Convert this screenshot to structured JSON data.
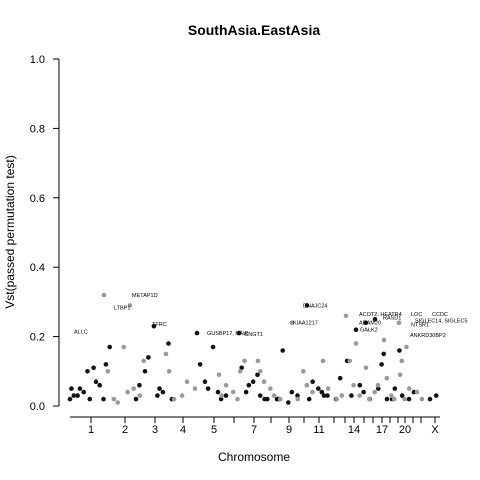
{
  "chart_data": {
    "type": "scatter",
    "title": "SouthAsia.EastAsia",
    "xlabel": "Chromosome",
    "ylabel": "Vst(passed permutation test)",
    "ylim": [
      0,
      1.0
    ],
    "yticks": [
      "0.0",
      "0.2",
      "0.4",
      "0.6",
      "0.8",
      "1.0"
    ],
    "grid": false,
    "chromosomes": [
      "1",
      "2",
      "3",
      "4",
      "5",
      "6",
      "7",
      "8",
      "9",
      "10",
      "11",
      "12",
      "13",
      "14",
      "15",
      "16",
      "17",
      "18",
      "19",
      "20",
      "21",
      "22",
      "X"
    ],
    "chrom_ticks_shown": [
      "1",
      "2",
      "3",
      "4",
      "5",
      "7",
      "9",
      "11",
      "14",
      "17",
      "20",
      "X"
    ],
    "colors": {
      "dark": "#111111",
      "light": "#999999"
    },
    "series": [
      {
        "values": [
          [
            1,
            0.02
          ],
          [
            1,
            0.07
          ],
          [
            1,
            0.05
          ],
          [
            1,
            0.12
          ],
          [
            1,
            0.02
          ],
          [
            1,
            0.03
          ],
          [
            1,
            0.06
          ],
          [
            1,
            0.04
          ],
          [
            1,
            0.17
          ],
          [
            1,
            0.11
          ],
          [
            1,
            0.03
          ],
          [
            1,
            0.02
          ],
          [
            1,
            0.1
          ],
          [
            1,
            0.05
          ],
          [
            3,
            0.02
          ],
          [
            3,
            0.05
          ],
          [
            3,
            0.1
          ],
          [
            3,
            0.18
          ],
          [
            3,
            0.23
          ],
          [
            3,
            0.06
          ],
          [
            3,
            0.04
          ],
          [
            3,
            0.14
          ],
          [
            3,
            0.02
          ],
          [
            3,
            0.03
          ],
          [
            5,
            0.21
          ],
          [
            5,
            0.04
          ],
          [
            5,
            0.07
          ],
          [
            5,
            0.03
          ],
          [
            5,
            0.17
          ],
          [
            5,
            0.12
          ],
          [
            5,
            0.02
          ],
          [
            5,
            0.05
          ],
          [
            7,
            0.21
          ],
          [
            7,
            0.09
          ],
          [
            7,
            0.04
          ],
          [
            7,
            0.02
          ],
          [
            7,
            0.07
          ],
          [
            7,
            0.11
          ],
          [
            7,
            0.03
          ],
          [
            7,
            0.06
          ],
          [
            7,
            0.02
          ],
          [
            9,
            0.02
          ],
          [
            9,
            0.04
          ],
          [
            9,
            0.16
          ],
          [
            9,
            0.03
          ],
          [
            9,
            0.01
          ],
          [
            9,
            0.02
          ],
          [
            11,
            0.29
          ],
          [
            11,
            0.04
          ],
          [
            11,
            0.07
          ],
          [
            11,
            0.03
          ],
          [
            11,
            0.05
          ],
          [
            11,
            0.02
          ],
          [
            11,
            0.03
          ],
          [
            13,
            0.02
          ],
          [
            13,
            0.13
          ],
          [
            13,
            0.08
          ],
          [
            13,
            0.03
          ],
          [
            15,
            0.22
          ],
          [
            15,
            0.24
          ],
          [
            15,
            0.06
          ],
          [
            15,
            0.02
          ],
          [
            15,
            0.04
          ],
          [
            17,
            0.25
          ],
          [
            17,
            0.15
          ],
          [
            17,
            0.05
          ],
          [
            17,
            0.02
          ],
          [
            17,
            0.12
          ],
          [
            19,
            0.02
          ],
          [
            19,
            0.16
          ],
          [
            19,
            0.05
          ],
          [
            19,
            0.03
          ],
          [
            21,
            0.02
          ],
          [
            21,
            0.04
          ],
          [
            23,
            0.02
          ],
          [
            23,
            0.03
          ]
        ]
      },
      {
        "values": [
          [
            2,
            0.32
          ],
          [
            2,
            0.29
          ],
          [
            2,
            0.02
          ],
          [
            2,
            0.03
          ],
          [
            2,
            0.17
          ],
          [
            2,
            0.1
          ],
          [
            2,
            0.05
          ],
          [
            2,
            0.01
          ],
          [
            2,
            0.13
          ],
          [
            2,
            0.04
          ],
          [
            4,
            0.15
          ],
          [
            4,
            0.07
          ],
          [
            4,
            0.02
          ],
          [
            4,
            0.05
          ],
          [
            4,
            0.03
          ],
          [
            4,
            0.1
          ],
          [
            6,
            0.09
          ],
          [
            6,
            0.02
          ],
          [
            6,
            0.06
          ],
          [
            6,
            0.13
          ],
          [
            6,
            0.04
          ],
          [
            6,
            0.03
          ],
          [
            6,
            0.1
          ],
          [
            8,
            0.13
          ],
          [
            8,
            0.03
          ],
          [
            8,
            0.07
          ],
          [
            8,
            0.02
          ],
          [
            8,
            0.05
          ],
          [
            8,
            0.1
          ],
          [
            10,
            0.24
          ],
          [
            10,
            0.06
          ],
          [
            10,
            0.02
          ],
          [
            10,
            0.04
          ],
          [
            10,
            0.1
          ],
          [
            12,
            0.13
          ],
          [
            12,
            0.02
          ],
          [
            12,
            0.05
          ],
          [
            12,
            0.03
          ],
          [
            14,
            0.26
          ],
          [
            14,
            0.18
          ],
          [
            14,
            0.13
          ],
          [
            14,
            0.03
          ],
          [
            14,
            0.06
          ],
          [
            16,
            0.11
          ],
          [
            16,
            0.04
          ],
          [
            16,
            0.02
          ],
          [
            16,
            0.06
          ],
          [
            18,
            0.19
          ],
          [
            18,
            0.03
          ],
          [
            18,
            0.08
          ],
          [
            18,
            0.02
          ],
          [
            20,
            0.24
          ],
          [
            20,
            0.17
          ],
          [
            20,
            0.13
          ],
          [
            20,
            0.05
          ],
          [
            20,
            0.02
          ],
          [
            20,
            0.09
          ],
          [
            22,
            0.04
          ],
          [
            22,
            0.02
          ]
        ]
      }
    ],
    "annotations": [
      {
        "label": "METAP1D",
        "chrom": 2,
        "y": 0.32
      },
      {
        "label": "LTBP1",
        "chrom": 2,
        "y": 0.29
      },
      {
        "label": "ALLC",
        "chrom": 1,
        "y": 0.22
      },
      {
        "label": "TFRC",
        "chrom": 3,
        "y": 0.23
      },
      {
        "label": "GUSBP17, NAIP",
        "chrom": 5,
        "y": 0.21
      },
      {
        "label": "GNGT1",
        "chrom": 7,
        "y": 0.21
      },
      {
        "label": "KIAA1217",
        "chrom": 10,
        "y": 0.24
      },
      {
        "label": "DNAJC24",
        "chrom": 11,
        "y": 0.29
      },
      {
        "label": "ACOT2, HEATR4",
        "chrom": 14,
        "y": 0.26
      },
      {
        "label": "ADAM20",
        "chrom": 15,
        "y": 0.24
      },
      {
        "label": "GALK2",
        "chrom": 15,
        "y": 0.22
      },
      {
        "label": "RASD1",
        "chrom": 17,
        "y": 0.25
      },
      {
        "label": "LOC",
        "chrom": 19,
        "y": 0.26
      },
      {
        "label": "CCDC",
        "chrom": 20,
        "y": 0.26
      },
      {
        "label": "SIGLEC14, SIGLEC5",
        "chrom": 19,
        "y": 0.25
      },
      {
        "label": "NTSR1",
        "chrom": 20,
        "y": 0.24
      },
      {
        "label": "ANKRD30BP2",
        "chrom": 20,
        "y": 0.21
      }
    ]
  }
}
